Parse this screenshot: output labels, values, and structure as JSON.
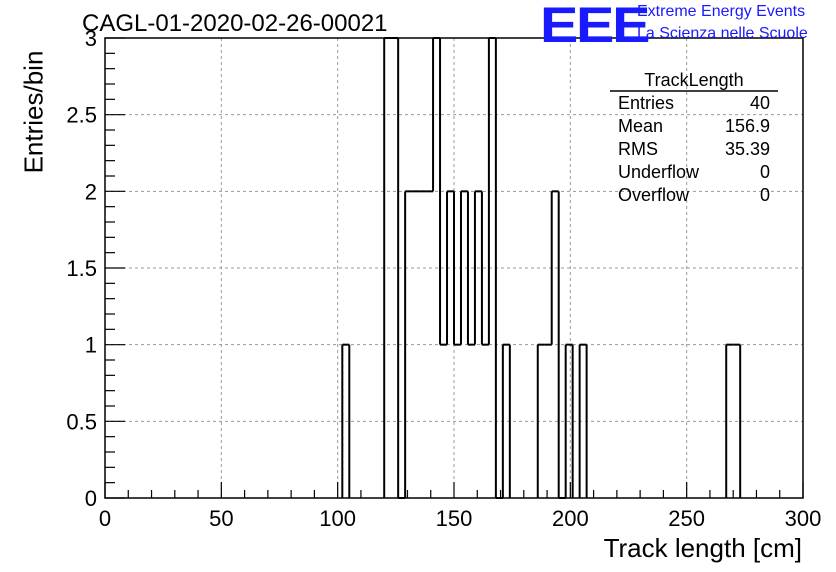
{
  "title": "CAGL-01-2020-02-26-00021",
  "logo": {
    "mark": "EEE",
    "line1": "Extreme Energy Events",
    "line2": "La Scienza nelle Scuole",
    "color": "#1a1aff"
  },
  "stats": {
    "name": "TrackLength",
    "rows": [
      {
        "key": "Entries",
        "value": "40"
      },
      {
        "key": "Mean",
        "value": "156.9"
      },
      {
        "key": "RMS",
        "value": "35.39"
      },
      {
        "key": "Underflow",
        "value": "0"
      },
      {
        "key": "Overflow",
        "value": "0"
      }
    ]
  },
  "chart_data": {
    "type": "bar",
    "histogram": true,
    "xlabel": "Track length [cm]",
    "ylabel": "Entries/bin",
    "xlim": [
      0,
      300
    ],
    "ylim": [
      0,
      3
    ],
    "bin_width": 3,
    "x_ticks": [
      0,
      50,
      100,
      150,
      200,
      250,
      300
    ],
    "x_tick_labels": [
      "0",
      "50",
      "100",
      "150",
      "200",
      "250",
      "300"
    ],
    "y_ticks": [
      0,
      0.5,
      1,
      1.5,
      2,
      2.5,
      3
    ],
    "y_tick_labels": [
      "0",
      "0.5",
      "1",
      "1.5",
      "2",
      "2.5",
      "3"
    ],
    "grid": true,
    "bins": [
      {
        "x": 102,
        "count": 1
      },
      {
        "x": 120,
        "count": 3
      },
      {
        "x": 123,
        "count": 3
      },
      {
        "x": 126,
        "count": 0
      },
      {
        "x": 129,
        "count": 2
      },
      {
        "x": 132,
        "count": 2
      },
      {
        "x": 135,
        "count": 2
      },
      {
        "x": 138,
        "count": 2
      },
      {
        "x": 141,
        "count": 3
      },
      {
        "x": 144,
        "count": 1
      },
      {
        "x": 147,
        "count": 2
      },
      {
        "x": 150,
        "count": 1
      },
      {
        "x": 153,
        "count": 2
      },
      {
        "x": 156,
        "count": 1
      },
      {
        "x": 159,
        "count": 2
      },
      {
        "x": 162,
        "count": 1
      },
      {
        "x": 165,
        "count": 3
      },
      {
        "x": 168,
        "count": 0
      },
      {
        "x": 171,
        "count": 1
      },
      {
        "x": 186,
        "count": 1
      },
      {
        "x": 189,
        "count": 1
      },
      {
        "x": 192,
        "count": 2
      },
      {
        "x": 195,
        "count": 0
      },
      {
        "x": 198,
        "count": 1
      },
      {
        "x": 204,
        "count": 1
      },
      {
        "x": 267,
        "count": 1
      },
      {
        "x": 270,
        "count": 1
      }
    ]
  }
}
